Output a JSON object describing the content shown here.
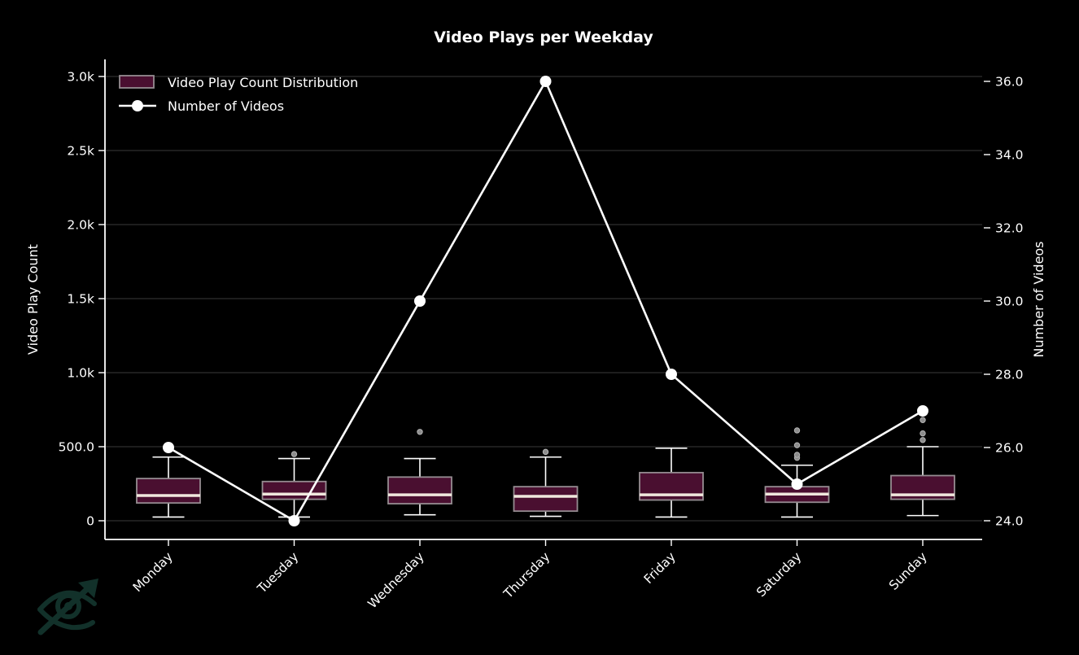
{
  "figure": {
    "title": "Video Plays per Weekday",
    "watermark_icon": "eye-trending-up-icon"
  },
  "legend": {
    "items": [
      {
        "label": "Video Play Count Distribution",
        "swatch": "box-patch"
      },
      {
        "label": "Number of Videos",
        "swatch": "line-with-circle-marker"
      }
    ]
  },
  "colors": {
    "background": "#000000",
    "text": "#ffffff",
    "grid": "#3a3a3a",
    "spine": "#ffffff",
    "box_fill": "#4a0f30",
    "box_edge": "#958c91",
    "median": "#f0e8dd",
    "whisker": "#ffffff",
    "outlier_fill": "#8d8d8d",
    "outlier_edge": "#b5b5b5",
    "line": "#ffffff",
    "marker": "#ffffff",
    "watermark": "#12312a"
  },
  "chart_data": {
    "type": "box+line",
    "title": "Video Plays per Weekday",
    "categories": [
      "Monday",
      "Tuesday",
      "Wednesday",
      "Thursday",
      "Friday",
      "Saturday",
      "Sunday"
    ],
    "left_axis": {
      "label": "Video Play Count",
      "tick_labels": [
        "0",
        "500.0",
        "1.0k",
        "1.5k",
        "2.0k",
        "2.5k",
        "3.0k"
      ],
      "tick_values": [
        0,
        500,
        1000,
        1500,
        2000,
        2500,
        3000
      ],
      "ylim": [
        -125,
        3120
      ],
      "grid": true
    },
    "right_axis": {
      "label": "Number of Videos",
      "tick_labels": [
        "24.0",
        "26.0",
        "28.0",
        "30.0",
        "32.0",
        "34.0",
        "36.0"
      ],
      "tick_values": [
        24,
        26,
        28,
        30,
        32,
        34,
        36
      ],
      "ylim": [
        23.5,
        36.6
      ],
      "grid": false
    },
    "box_series": {
      "name": "Video Play Count Distribution",
      "axis": "left",
      "boxes": [
        {
          "category": "Monday",
          "whisker_low": 25,
          "q1": 120,
          "median": 170,
          "q3": 285,
          "whisker_high": 430,
          "outliers": []
        },
        {
          "category": "Tuesday",
          "whisker_low": 25,
          "q1": 145,
          "median": 180,
          "q3": 265,
          "whisker_high": 420,
          "outliers": [
            450
          ]
        },
        {
          "category": "Wednesday",
          "whisker_low": 40,
          "q1": 115,
          "median": 175,
          "q3": 295,
          "whisker_high": 420,
          "outliers": [
            600
          ]
        },
        {
          "category": "Thursday",
          "whisker_low": 30,
          "q1": 65,
          "median": 165,
          "q3": 230,
          "whisker_high": 430,
          "outliers": [
            465
          ]
        },
        {
          "category": "Friday",
          "whisker_low": 25,
          "q1": 140,
          "median": 175,
          "q3": 325,
          "whisker_high": 490,
          "outliers": []
        },
        {
          "category": "Saturday",
          "whisker_low": 25,
          "q1": 125,
          "median": 180,
          "q3": 230,
          "whisker_high": 375,
          "outliers": [
            425,
            445,
            510,
            610
          ]
        },
        {
          "category": "Sunday",
          "whisker_low": 35,
          "q1": 145,
          "median": 175,
          "q3": 305,
          "whisker_high": 500,
          "outliers": [
            545,
            590,
            680
          ]
        }
      ]
    },
    "line_series": {
      "name": "Number of Videos",
      "axis": "right",
      "values": [
        26,
        24,
        30,
        36,
        28,
        25,
        27
      ]
    },
    "legend_position": "upper-left",
    "legend_frame": false
  }
}
